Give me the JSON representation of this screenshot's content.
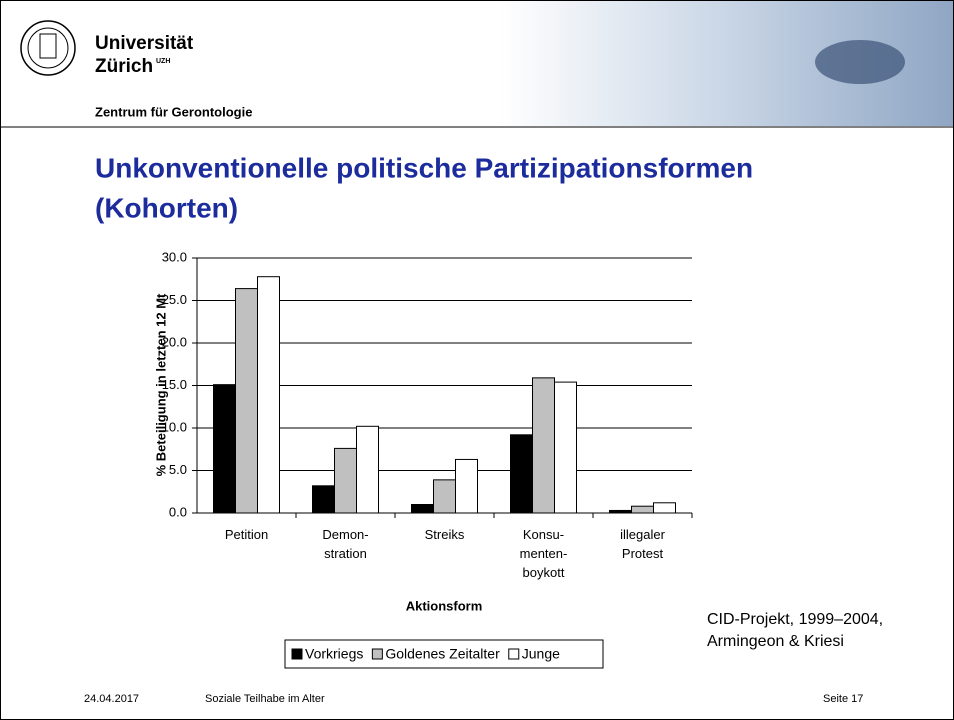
{
  "header": {
    "university": "Universität",
    "city": "Zürich",
    "city_mark": "UZH",
    "institute": "Zentrum für Gerontologie"
  },
  "title_lines": [
    "Unkonventionelle politische Partizipationsformen",
    "(Kohorten)"
  ],
  "chart_data": {
    "type": "bar",
    "categories": [
      "Petition",
      "Demon-\nstration",
      "Streiks",
      "Konsu-\nmenten-\nboykott",
      "illegaler\nProtest"
    ],
    "series": [
      {
        "name": "Vorkriegs",
        "color": "#000000",
        "values": [
          15.1,
          3.2,
          1.0,
          9.2,
          0.3
        ]
      },
      {
        "name": "Goldenes Zeitalter",
        "color": "#c0c0c0",
        "values": [
          26.4,
          7.6,
          3.9,
          15.9,
          0.8
        ]
      },
      {
        "name": "Junge",
        "color": "#ffffff",
        "values": [
          27.8,
          10.2,
          6.3,
          15.4,
          1.2
        ]
      }
    ],
    "ylim": [
      0,
      30
    ],
    "yticks": [
      {
        "value": 0,
        "label": "0.0"
      },
      {
        "value": 5,
        "label": "5.0"
      },
      {
        "value": 10,
        "label": "10.0"
      },
      {
        "value": 15,
        "label": "15.0"
      },
      {
        "value": 20,
        "label": "20.0"
      },
      {
        "value": 25,
        "label": "25.0"
      },
      {
        "value": 30,
        "label": "30.0"
      }
    ],
    "grid": true,
    "x_label": "Aktionsform",
    "y_label": "% Beteiligung in letzten 12 Mt",
    "legend": "bottom"
  },
  "source_lines": [
    "CID-Projekt, 1999–2004,",
    "Armingeon & Kriesi"
  ],
  "footer": {
    "date": "24.04.2017",
    "topic": "Soziale Teilhabe im Alter",
    "page": "Seite 17"
  }
}
